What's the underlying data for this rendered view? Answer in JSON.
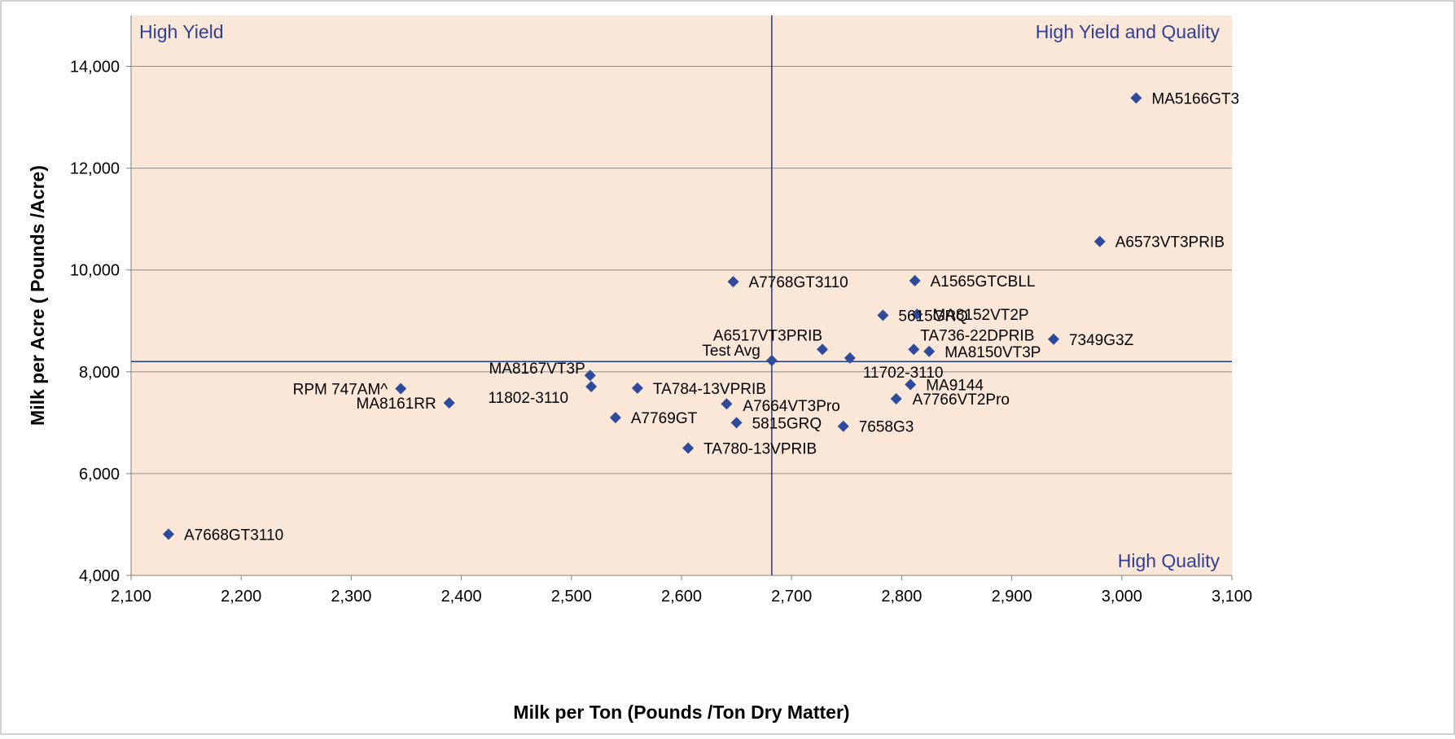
{
  "colors": {
    "plot_background": "#fbe7d8",
    "marker": "#2e4a9a",
    "quadrant_label": "#2f3f95",
    "reference_line": "#1f3a8a",
    "gridline": "#8c8c8c",
    "frame": "#a6a6a6"
  },
  "chart_data": {
    "type": "scatter",
    "title": "",
    "xlabel": "Milk per Ton (Pounds /Ton Dry Matter)",
    "ylabel": "Milk per Acre ( Pounds /Acre)",
    "xlim": [
      2100,
      3100
    ],
    "ylim": [
      4000,
      15000
    ],
    "x_ticks": [
      2100,
      2200,
      2300,
      2400,
      2500,
      2600,
      2700,
      2800,
      2900,
      3000,
      3100
    ],
    "x_tick_labels": [
      "2,100",
      "2,200",
      "2,300",
      "2,400",
      "2,500",
      "2,600",
      "2,700",
      "2,800",
      "2,900",
      "3,000",
      "3,100"
    ],
    "y_ticks": [
      4000,
      6000,
      8000,
      10000,
      12000,
      14000
    ],
    "y_tick_labels": [
      "4,000",
      "6,000",
      "8,000",
      "10,000",
      "12,000",
      "14,000"
    ],
    "grid": "horizontal",
    "legend": "none",
    "marker": "diamond",
    "reference_lines": {
      "x": 2682,
      "y": 8200
    },
    "quadrant_labels": [
      "High Yield",
      "High Yield and Quality",
      "High Quality"
    ],
    "points": [
      {
        "label": "MA5166GT3",
        "x": 3013,
        "y": 13380
      },
      {
        "label": "A6573VT3PRIB",
        "x": 2980,
        "y": 10560
      },
      {
        "label": "A7768GT3110",
        "x": 2647,
        "y": 9770
      },
      {
        "label": "A1565GTCBLL",
        "x": 2812,
        "y": 9790
      },
      {
        "label": "5615GRQ",
        "x": 2783,
        "y": 9110
      },
      {
        "label": "MA8152VT2P",
        "x": 2814,
        "y": 9130
      },
      {
        "label": "A6517VT3PRIB",
        "x": 2728,
        "y": 8440
      },
      {
        "label": "TA736-22DPRIB",
        "x": 2811,
        "y": 8440
      },
      {
        "label": "MA8150VT3P",
        "x": 2825,
        "y": 8400
      },
      {
        "label": "7349G3Z",
        "x": 2938,
        "y": 8640
      },
      {
        "label": "Test Avg",
        "x": 2682,
        "y": 8220
      },
      {
        "label": "11702-3110",
        "x": 2753,
        "y": 8270
      },
      {
        "label": "MA8167VT3P",
        "x": 2517,
        "y": 7930
      },
      {
        "label": "11802-3110",
        "x": 2518,
        "y": 7710
      },
      {
        "label": "TA784-13VPRIB",
        "x": 2560,
        "y": 7680
      },
      {
        "label": "RPM 747AM^",
        "x": 2345,
        "y": 7670
      },
      {
        "label": "MA8161RR",
        "x": 2389,
        "y": 7390
      },
      {
        "label": "MA9144",
        "x": 2808,
        "y": 7750
      },
      {
        "label": "A7766VT2Pro",
        "x": 2795,
        "y": 7470
      },
      {
        "label": "A7664VT3Pro",
        "x": 2641,
        "y": 7370
      },
      {
        "label": "A7769GT",
        "x": 2540,
        "y": 7100
      },
      {
        "label": "5815GRQ",
        "x": 2650,
        "y": 7000
      },
      {
        "label": "7658G3",
        "x": 2747,
        "y": 6930
      },
      {
        "label": "TA780-13VPRIB",
        "x": 2606,
        "y": 6500
      },
      {
        "label": "A7668GT3110",
        "x": 2134,
        "y": 4810
      }
    ]
  }
}
